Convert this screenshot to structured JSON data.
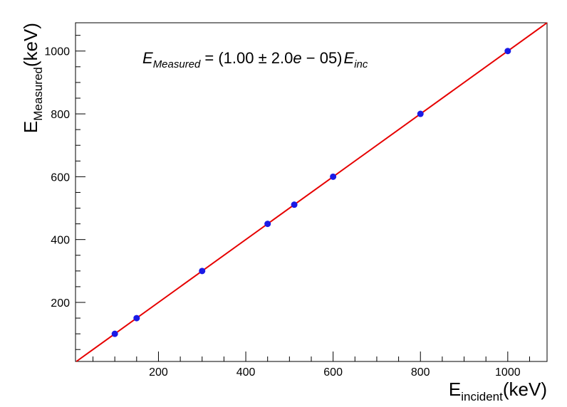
{
  "chart_data": {
    "type": "scatter",
    "title": "",
    "xlabel": {
      "main": "E",
      "sub": "incident",
      "unit": "(keV)"
    },
    "ylabel": {
      "main": "E",
      "sub": "Measured",
      "unit": "(keV)"
    },
    "xlim": [
      10,
      1090
    ],
    "ylim": [
      12,
      1090
    ],
    "x_ticks": [
      200,
      400,
      600,
      800,
      1000
    ],
    "y_ticks": [
      200,
      400,
      600,
      800,
      1000
    ],
    "x_tick_labels": [
      "200",
      "400",
      "600",
      "800",
      "1000"
    ],
    "y_tick_labels": [
      "200",
      "400",
      "600",
      "800",
      "1000"
    ],
    "grid": false,
    "series": [
      {
        "marker": "circle",
        "color": "#1a1ae6",
        "x": [
          100,
          150,
          300,
          450,
          511,
          600,
          800,
          1000
        ],
        "y": [
          100,
          150,
          300,
          450,
          511,
          600,
          800,
          1000
        ]
      }
    ],
    "fit": {
      "slope": 1.0,
      "intercept": 0,
      "color": "#e60000"
    },
    "annotation": {
      "lhs": "E",
      "lhs_sub": "Measured",
      "eq": "= (1.00 ± 2.0",
      "e_part": "e",
      "exp": " − 05)",
      "rhs": "E",
      "rhs_sub": "inc"
    }
  }
}
